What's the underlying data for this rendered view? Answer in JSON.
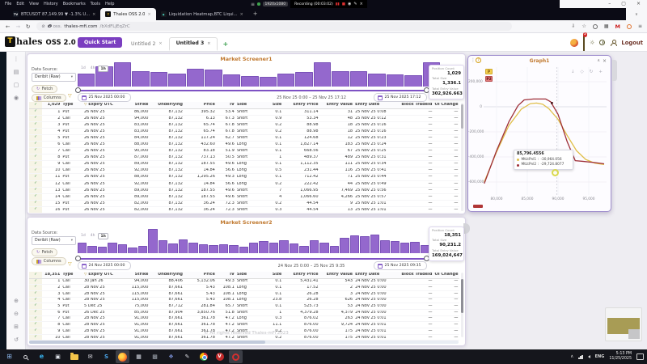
{
  "icons": {
    "check": "✓",
    "caret_down": "▾",
    "chevron_down": "∨",
    "chevron_up": "∧",
    "close": "×",
    "back": "←",
    "forward": "→",
    "reload": "↻",
    "shield": "⊘",
    "star": "☆",
    "menu": "≡",
    "kebab": "⋮",
    "funnel": "▽",
    "plus": "+",
    "minimize": "–",
    "maximize": "▢",
    "pause": "▮▮",
    "stop": "■",
    "record": "◉",
    "pencil": "✎",
    "download": "↓",
    "lasso": "◇",
    "refresh": "↻",
    "help": "?",
    "save_page": "⇩",
    "puzzle": "▦",
    "sun": "☼"
  },
  "browser": {
    "menu": [
      "File",
      "Edit",
      "View",
      "History",
      "Bookmarks",
      "Tools",
      "Help"
    ],
    "recorder": {
      "monitor": "1920x1080",
      "label": "Recording (00:03:02)"
    },
    "tabs": [
      {
        "icon": "tradingview",
        "glyph": "TV",
        "label": "BTCUSDT 87,149.99 ▼ -1.3% U...",
        "active": false
      },
      {
        "icon": "thales",
        "glyph": "T",
        "label": "Thales OSS 2.0",
        "active": true
      },
      {
        "icon": "coinglass",
        "glyph": "◆",
        "label": "Liquidation Heatmap,BTC Liqui...",
        "active": false
      }
    ],
    "new_tab": "+",
    "url_prefix": "oss.",
    "url_domain": "thales-mfi.com",
    "url_path": "/bXdFLjEqZrC",
    "extension_m": "M"
  },
  "app_header": {
    "logo_letter": "T",
    "brand_text": "hales",
    "brand_suffix": "OSS 2.0",
    "quick_start": "Quick Start",
    "tabs": [
      {
        "label": "Untitled 2",
        "active": false
      },
      {
        "label": "Untitled 3",
        "active": true
      }
    ],
    "add_tab": "+",
    "notification_count": "2",
    "logout": "Logout"
  },
  "sidebar": {
    "top_icons": [
      {
        "name": "more-menu-icon",
        "glyph": "⋮"
      },
      {
        "name": "layers-icon",
        "glyph": "▤"
      },
      {
        "name": "frame-icon",
        "glyph": "▢"
      },
      {
        "name": "palette-icon",
        "glyph": "◉"
      }
    ],
    "bottom_icons": [
      {
        "name": "zoom-in-icon",
        "glyph": "⊕"
      },
      {
        "name": "zoom-out-icon",
        "glyph": "⊖"
      },
      {
        "name": "fit-view-icon",
        "glyph": "⊞"
      },
      {
        "name": "reset-view-icon",
        "glyph": "↺"
      }
    ]
  },
  "screener1": {
    "title": "Market Screener1",
    "data_source_label": "Data Source:",
    "data_source_value": "Deribit (Raw)",
    "fetch_label": "Fetch",
    "columns_label": "Columns",
    "time_buttons": [
      "1d",
      "4h",
      "1h"
    ],
    "active_time_button": "1h",
    "date_from": "25 Nov 2025  00:00",
    "range_text": "25 Nov 25 0:00 – 25 Nov 25 17:12",
    "date_to": "25 Nov 2025  17:12",
    "stats": [
      {
        "label": "Position Count",
        "value": "1,029"
      },
      {
        "label": "Total Size",
        "value": "1,336.1"
      },
      {
        "label": "Total Entry Value",
        "value": "302,926.663"
      }
    ],
    "row_count": "1,029",
    "headers": [
      "Type",
      "Expiry UTC",
      "Strike",
      "Underlying",
      "Price",
      "IV",
      "Side",
      "Size",
      "Entry Price",
      "Entry Value",
      "Entry Date",
      "Block TradeId",
      "OI Change"
    ],
    "rows": [
      [
        "Put",
        "26 Nov 25",
        "86,000",
        "87,132",
        "395.32",
        "53.4",
        "Short",
        "0.1",
        "311.14",
        "31",
        "25 Nov 25 0:08",
        "—",
        "—"
      ],
      [
        "Call",
        "26 Nov 25",
        "94,000",
        "87,132",
        "6.13",
        "67.3",
        "Short",
        "0.9",
        "53.34",
        "48",
        "25 Nov 25 0:12",
        "—",
        "—"
      ],
      [
        "Put",
        "26 Nov 25",
        "83,000",
        "87,132",
        "65.74",
        "67.8",
        "Short",
        "0.2",
        "88.98",
        "18",
        "25 Nov 25 0:16",
        "—",
        "—"
      ],
      [
        "Put",
        "26 Nov 25",
        "83,000",
        "87,132",
        "65.74",
        "67.8",
        "Short",
        "0.2",
        "88.98",
        "18",
        "25 Nov 25 0:16",
        "—",
        "—"
      ],
      [
        "Put",
        "26 Nov 25",
        "84,000",
        "87,132",
        "117.24",
        "62.7",
        "Short",
        "0.1",
        "124.68",
        "12",
        "25 Nov 25 0:23",
        "—",
        "—"
      ],
      [
        "Call",
        "26 Nov 25",
        "88,000",
        "87,132",
        "432.60",
        "49.6",
        "Long",
        "0.1",
        "1,827.14",
        "183",
        "25 Nov 25 0:24",
        "—",
        "—"
      ],
      [
        "Call",
        "26 Nov 25",
        "90,000",
        "87,132",
        "83.18",
        "51.9",
        "Short",
        "0.1",
        "668.56",
        "67",
        "25 Nov 25 0:25",
        "—",
        "—"
      ],
      [
        "Put",
        "26 Nov 25",
        "87,000",
        "87,132",
        "737.13",
        "50.5",
        "Short",
        "1",
        "489.37",
        "489",
        "25 Nov 25 0:31",
        "—",
        "—"
      ],
      [
        "Call",
        "26 Nov 25",
        "89,000",
        "87,132",
        "187.55",
        "49.6",
        "Long",
        "0.1",
        "1,112.35",
        "111",
        "25 Nov 25 0:34",
        "—",
        "—"
      ],
      [
        "Call",
        "26 Nov 25",
        "92,000",
        "87,132",
        "14.84",
        "56.6",
        "Long",
        "0.5",
        "231.44",
        "116",
        "25 Nov 25 0:41",
        "—",
        "—"
      ],
      [
        "Put",
        "26 Nov 25",
        "88,000",
        "87,132",
        "1,295.26",
        "49.3",
        "Long",
        "0.1",
        "712.42",
        "71",
        "25 Nov 25 0:44",
        "—",
        "—"
      ],
      [
        "Call",
        "26 Nov 25",
        "92,000",
        "87,132",
        "14.84",
        "56.6",
        "Long",
        "0.2",
        "222.42",
        "44",
        "25 Nov 25 0:49",
        "—",
        "—"
      ],
      [
        "Call",
        "26 Nov 25",
        "89,000",
        "87,132",
        "187.55",
        "49.6",
        "Short",
        "7",
        "1,066.95",
        "7,469",
        "25 Nov 25 0:56",
        "—",
        "—"
      ],
      [
        "Call",
        "26 Nov 25",
        "89,000",
        "87,132",
        "187.55",
        "49.6",
        "Short",
        "4",
        "1,066.60",
        "4,266",
        "25 Nov 25 0:57",
        "—",
        "—"
      ],
      [
        "Put",
        "26 Nov 25",
        "82,000",
        "87,132",
        "36.24",
        "72.3",
        "Short",
        "0.2",
        "44.54",
        "9",
        "25 Nov 25 1:01",
        "—",
        "—"
      ],
      [
        "Put",
        "26 Nov 25",
        "82,000",
        "87,132",
        "36.24",
        "72.3",
        "Short",
        "0.3",
        "44.54",
        "13",
        "25 Nov 25 1:01",
        "—",
        "—"
      ]
    ]
  },
  "screener2": {
    "title": "Market Screener2",
    "data_source_label": "Data Source:",
    "data_source_value": "Deribit (Raw)",
    "fetch_label": "Fetch",
    "columns_label": "Columns",
    "time_buttons": [
      "1d",
      "4h",
      "1h"
    ],
    "active_time_button": "1h",
    "date_from": "24 Nov 2025  00:00",
    "range_text": "24 Nov 25 0:00 – 25 Nov 25 9:35",
    "date_to": "25 Nov 2025  09:35",
    "stats": [
      {
        "label": "Position Count",
        "value": "18,351"
      },
      {
        "label": "Total Size",
        "value": "90,231.2"
      },
      {
        "label": "Total Entry Value",
        "value": "169,024,647"
      }
    ],
    "row_count": "18,351",
    "headers": [
      "Type",
      "Expiry UTC",
      "Strike",
      "Underlying",
      "Price",
      "IV",
      "Side",
      "Size",
      "Entry Price",
      "Entry Value",
      "Entry Date",
      "Block TradeId",
      "OI Change"
    ],
    "rows": [
      [
        "Call",
        "30 Jan 26",
        "94,000",
        "88,406",
        "5,132.06",
        "49.3",
        "Short",
        "0.1",
        "5,431.41",
        "543",
        "24 Nov 25 0:00",
        "—",
        "—"
      ],
      [
        "Call",
        "28 Nov 25",
        "115,000",
        "87,661",
        "5.43",
        "108.1",
        "Long",
        "0.1",
        "17.52",
        "2",
        "24 Nov 25 0:00",
        "—",
        "—"
      ],
      [
        "Call",
        "28 Nov 25",
        "115,000",
        "87,661",
        "5.43",
        "108.1",
        "Long",
        "0.1",
        "26.28",
        "3",
        "24 Nov 25 0:00",
        "—",
        "—"
      ],
      [
        "Call",
        "28 Nov 25",
        "115,000",
        "87,661",
        "5.43",
        "108.1",
        "Long",
        "23.8",
        "26.28",
        "626",
        "24 Nov 25 0:00",
        "—",
        "—"
      ],
      [
        "Put",
        "5 Dec 25",
        "75,000",
        "87,712",
        "281.84",
        "65.7",
        "Short",
        "0.1",
        "525.73",
        "53",
        "24 Nov 25 0:00",
        "—",
        "—"
      ],
      [
        "Put",
        "26 Dec 25",
        "85,000",
        "87,904",
        "3,850.76",
        "51.8",
        "Short",
        "1",
        "4,379.28",
        "4,379",
        "24 Nov 25 0:00",
        "—",
        "—"
      ],
      [
        "Call",
        "28 Nov 25",
        "91,000",
        "87,661",
        "361.78",
        "47.2",
        "Long",
        "0.3",
        "876.02",
        "263",
        "24 Nov 25 0:01",
        "—",
        "—"
      ],
      [
        "Call",
        "28 Nov 25",
        "91,000",
        "87,661",
        "361.78",
        "47.2",
        "Short",
        "11.1",
        "876.00",
        "9,724",
        "24 Nov 25 0:01",
        "—",
        "—"
      ],
      [
        "Call",
        "28 Nov 25",
        "91,000",
        "87,661",
        "361.78",
        "47.2",
        "Short",
        "0.2",
        "876.00",
        "175",
        "24 Nov 25 0:01",
        "—",
        "—"
      ],
      [
        "Call",
        "28 Nov 25",
        "91,000",
        "87,661",
        "361.78",
        "47.2",
        "Short",
        "0.2",
        "876.00",
        "175",
        "24 Nov 25 0:01",
        "—",
        "—"
      ]
    ],
    "watermark": "© All rights reserved Thales-mFi 2023"
  },
  "graph": {
    "title": "Graph1",
    "legend": [
      {
        "label": "P",
        "color": "#e0bf4a"
      },
      {
        "label": "P2",
        "color": "#9e2f38"
      }
    ],
    "tooltip": {
      "title": "85,796.4556",
      "items": [
        {
          "name": "MtLtPnl1 :",
          "value": "-30,964.056",
          "color": "#e0bf4a"
        },
        {
          "name": "MtLtPnl2 :",
          "value": "-29,724.8077",
          "color": "#9e2f38"
        }
      ]
    }
  },
  "chart_data": [
    {
      "id": "graph1",
      "type": "line",
      "title": "Graph1",
      "xlabel": "Underlying price",
      "ylabel": "PnL",
      "xlim": [
        78000,
        97500
      ],
      "ylim": [
        -700000,
        260000
      ],
      "xticks": [
        80000,
        85000,
        90000,
        95000
      ],
      "xtick_labels": [
        "80,000",
        "85,000",
        "90,000",
        "95,000"
      ],
      "yticks": [
        200000,
        0,
        -200000,
        -400000,
        -600000
      ],
      "ytick_labels": [
        "200,000",
        "0",
        "-200,000",
        "-400,000",
        "-600,000"
      ],
      "grid": true,
      "legend_position": "top-left",
      "series": [
        {
          "name": "P",
          "color": "#e0bf4a",
          "x": [
            78000,
            80000,
            82000,
            84000,
            85500,
            86500,
            87500,
            88500,
            90000,
            91500,
            93000,
            94500,
            96000,
            97500
          ],
          "y": [
            -600000,
            -360000,
            -150000,
            -20000,
            25000,
            30000,
            20000,
            -15000,
            -100000,
            -230000,
            -350000,
            -420000,
            -450000,
            -460000
          ]
        },
        {
          "name": "P2",
          "color": "#9e2f38",
          "x": [
            78000,
            80000,
            82000,
            83500,
            84500,
            86000,
            88000,
            88800,
            90000,
            91500,
            92800,
            94000,
            96000,
            97500
          ],
          "y": [
            -612000,
            -350000,
            -120000,
            10000,
            55000,
            62000,
            62000,
            40000,
            -60000,
            -280000,
            -430000,
            -435000,
            -445000,
            -455000
          ]
        }
      ],
      "marker": {
        "series": "P2",
        "x": 89000,
        "y": 30000
      },
      "cursor": {
        "x": 89800,
        "y": -520000
      }
    },
    {
      "id": "screener1-histogram",
      "type": "bar",
      "title": "Market Screener1 trade volume by time bucket (relative heights)",
      "values": [
        0.5,
        0.78,
        0.95,
        0.58,
        0.56,
        0.5,
        0.7,
        0.66,
        0.46,
        0.4,
        0.38,
        0.5,
        0.56,
        0.95,
        0.6,
        0.58,
        0.5,
        0.48,
        0.44,
        0.95
      ],
      "color": "#9468cd"
    },
    {
      "id": "screener2-histogram",
      "type": "bar",
      "title": "Market Screener2 trade volume by time bucket (relative heights)",
      "values": [
        0.45,
        0.3,
        0.28,
        0.42,
        0.38,
        0.25,
        0.3,
        1.0,
        0.52,
        0.4,
        0.58,
        0.45,
        0.38,
        0.32,
        0.38,
        0.33,
        0.28,
        0.45,
        0.5,
        0.42,
        0.55,
        0.4,
        0.3,
        0.52,
        0.45,
        0.3,
        0.62,
        0.75,
        0.7,
        0.78,
        0.55,
        0.5,
        0.42,
        0.48,
        0.35,
        0.5
      ],
      "color": "#9468cd"
    }
  ],
  "taskbar": {
    "apps": [
      {
        "name": "start"
      },
      {
        "name": "search"
      },
      {
        "name": "edge",
        "glyph": "e"
      },
      {
        "name": "store",
        "glyph": "▣"
      },
      {
        "name": "file-explorer"
      },
      {
        "name": "mail",
        "glyph": "✉"
      },
      {
        "name": "skype",
        "glyph": "S"
      },
      {
        "name": "firefox",
        "active": true
      },
      {
        "name": "calculator",
        "glyph": "▦"
      },
      {
        "name": "paint",
        "glyph": "▩"
      },
      {
        "name": "app-blue",
        "glyph": "❖"
      },
      {
        "name": "pen-app",
        "glyph": "✎"
      },
      {
        "name": "chrome"
      },
      {
        "name": "v-app",
        "glyph": "V"
      },
      {
        "name": "recorder",
        "active": true
      }
    ],
    "tray": {
      "chevron": "∧",
      "lang": "ENG",
      "time": "5:13 PM",
      "date": "11/25/2025"
    }
  }
}
